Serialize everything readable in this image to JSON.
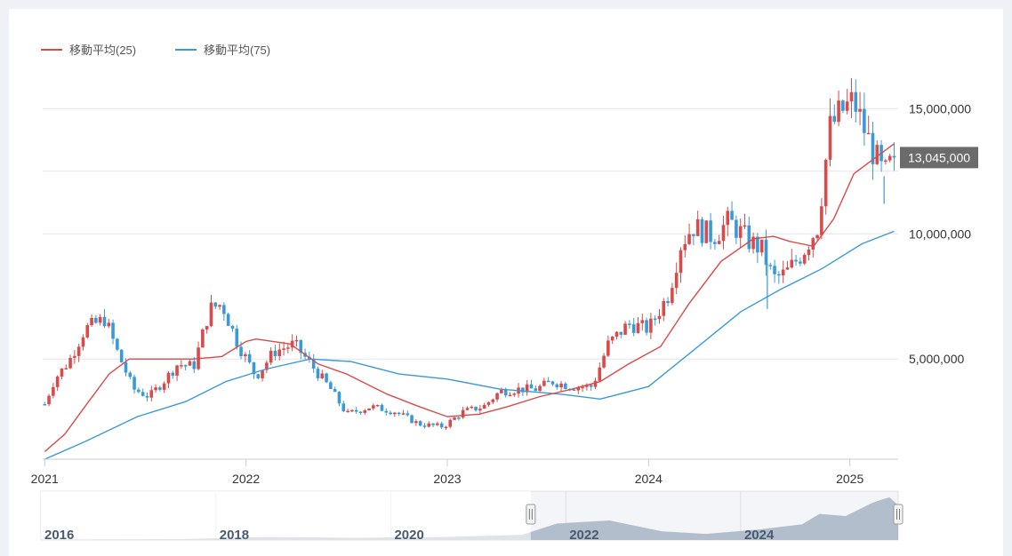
{
  "legend": [
    {
      "label": "移動平均(25)",
      "color": "#d94a4a"
    },
    {
      "label": "移動平均(75)",
      "color": "#3a9ad9"
    }
  ],
  "colors": {
    "up": "#d94a4a",
    "down": "#3a9ad9",
    "grid": "#e3e6ea",
    "navigator_area": "#b7c2cf"
  },
  "chart_data": {
    "type": "candlestick",
    "ylim": [
      1000000,
      16500000
    ],
    "yticks": [
      {
        "value": 5000000,
        "label": "5,000,000"
      },
      {
        "value": 10000000,
        "label": "10,000,000"
      },
      {
        "value": 15000000,
        "label": "15,000,000"
      }
    ],
    "xticks": [
      "2021",
      "2022",
      "2023",
      "2024",
      "2025"
    ],
    "last_price": {
      "value": 13045000,
      "label": "13,045,000"
    },
    "series": [
      {
        "name": "移動平均(25)",
        "type": "line"
      },
      {
        "name": "移動平均(75)",
        "type": "line"
      }
    ],
    "close_path": [
      [
        2021.0,
        3200000
      ],
      [
        2021.05,
        4200000
      ],
      [
        2021.12,
        4900000
      ],
      [
        2021.2,
        6200000
      ],
      [
        2021.3,
        6600000
      ],
      [
        2021.36,
        5300000
      ],
      [
        2021.44,
        3800000
      ],
      [
        2021.52,
        3500000
      ],
      [
        2021.6,
        4200000
      ],
      [
        2021.66,
        4800000
      ],
      [
        2021.74,
        4700000
      ],
      [
        2021.82,
        7000000
      ],
      [
        2021.88,
        7200000
      ],
      [
        2021.96,
        5600000
      ],
      [
        2022.05,
        4300000
      ],
      [
        2022.14,
        5300000
      ],
      [
        2022.24,
        5600000
      ],
      [
        2022.32,
        4800000
      ],
      [
        2022.42,
        3800000
      ],
      [
        2022.5,
        2800000
      ],
      [
        2022.62,
        3100000
      ],
      [
        2022.74,
        2900000
      ],
      [
        2022.86,
        2400000
      ],
      [
        2022.98,
        2300000
      ],
      [
        2023.08,
        2900000
      ],
      [
        2023.18,
        3100000
      ],
      [
        2023.26,
        3700000
      ],
      [
        2023.36,
        3800000
      ],
      [
        2023.44,
        3800000
      ],
      [
        2023.52,
        4100000
      ],
      [
        2023.62,
        3900000
      ],
      [
        2023.72,
        3900000
      ],
      [
        2023.8,
        5600000
      ],
      [
        2023.9,
        6400000
      ],
      [
        2024.0,
        6200000
      ],
      [
        2024.1,
        7600000
      ],
      [
        2024.16,
        9600000
      ],
      [
        2024.22,
        10300000
      ],
      [
        2024.32,
        9900000
      ],
      [
        2024.4,
        10500000
      ],
      [
        2024.5,
        9700000
      ],
      [
        2024.56,
        9400000
      ],
      [
        2024.62,
        8200000
      ],
      [
        2024.68,
        8400000
      ],
      [
        2024.76,
        9200000
      ],
      [
        2024.84,
        10300000
      ],
      [
        2024.9,
        14200000
      ],
      [
        2024.96,
        14900000
      ],
      [
        2025.02,
        15300000
      ],
      [
        2025.06,
        14400000
      ],
      [
        2025.12,
        13200000
      ],
      [
        2025.17,
        12300000
      ],
      [
        2025.22,
        13045000
      ]
    ],
    "ma25_path": [
      [
        2021.0,
        1300000
      ],
      [
        2021.1,
        2000000
      ],
      [
        2021.2,
        3100000
      ],
      [
        2021.32,
        4400000
      ],
      [
        2021.42,
        5000000
      ],
      [
        2021.6,
        5000000
      ],
      [
        2021.74,
        5000000
      ],
      [
        2021.88,
        5100000
      ],
      [
        2022.0,
        5700000
      ],
      [
        2022.05,
        5800000
      ],
      [
        2022.22,
        5600000
      ],
      [
        2022.36,
        4800000
      ],
      [
        2022.5,
        4400000
      ],
      [
        2022.7,
        3600000
      ],
      [
        2022.86,
        3100000
      ],
      [
        2023.0,
        2700000
      ],
      [
        2023.16,
        2800000
      ],
      [
        2023.3,
        3100000
      ],
      [
        2023.46,
        3500000
      ],
      [
        2023.62,
        3800000
      ],
      [
        2023.76,
        4100000
      ],
      [
        2023.9,
        4800000
      ],
      [
        2024.06,
        5500000
      ],
      [
        2024.2,
        7200000
      ],
      [
        2024.36,
        8900000
      ],
      [
        2024.52,
        9800000
      ],
      [
        2024.62,
        9900000
      ],
      [
        2024.7,
        9700000
      ],
      [
        2024.82,
        9500000
      ],
      [
        2024.92,
        10600000
      ],
      [
        2025.02,
        12400000
      ],
      [
        2025.12,
        13000000
      ],
      [
        2025.22,
        13600000
      ]
    ],
    "ma75_path": [
      [
        2021.0,
        1000000
      ],
      [
        2021.2,
        1700000
      ],
      [
        2021.46,
        2700000
      ],
      [
        2021.7,
        3300000
      ],
      [
        2021.9,
        4100000
      ],
      [
        2022.1,
        4600000
      ],
      [
        2022.32,
        5000000
      ],
      [
        2022.52,
        4900000
      ],
      [
        2022.76,
        4400000
      ],
      [
        2023.0,
        4200000
      ],
      [
        2023.26,
        3800000
      ],
      [
        2023.56,
        3600000
      ],
      [
        2023.76,
        3400000
      ],
      [
        2024.0,
        3900000
      ],
      [
        2024.2,
        5200000
      ],
      [
        2024.46,
        6900000
      ],
      [
        2024.66,
        7800000
      ],
      [
        2024.86,
        8600000
      ],
      [
        2025.06,
        9600000
      ],
      [
        2025.22,
        10100000
      ]
    ],
    "spike_lows": [
      [
        2024.59,
        7000000
      ],
      [
        2025.17,
        11200000
      ]
    ],
    "navigator": {
      "xticks": [
        "2016",
        "2018",
        "2020",
        "2022",
        "2024"
      ],
      "selection": [
        "2021",
        "2025"
      ],
      "path": [
        [
          2015.4,
          0.01
        ],
        [
          2017.0,
          0.02
        ],
        [
          2018.0,
          0.07
        ],
        [
          2019.0,
          0.05
        ],
        [
          2020.0,
          0.07
        ],
        [
          2020.9,
          0.12
        ],
        [
          2021.3,
          0.38
        ],
        [
          2021.9,
          0.45
        ],
        [
          2022.5,
          0.2
        ],
        [
          2023.0,
          0.14
        ],
        [
          2023.6,
          0.24
        ],
        [
          2024.1,
          0.36
        ],
        [
          2024.3,
          0.6
        ],
        [
          2024.6,
          0.55
        ],
        [
          2024.9,
          0.85
        ],
        [
          2025.0,
          0.92
        ],
        [
          2025.1,
          0.98
        ],
        [
          2025.2,
          0.8
        ]
      ]
    }
  }
}
